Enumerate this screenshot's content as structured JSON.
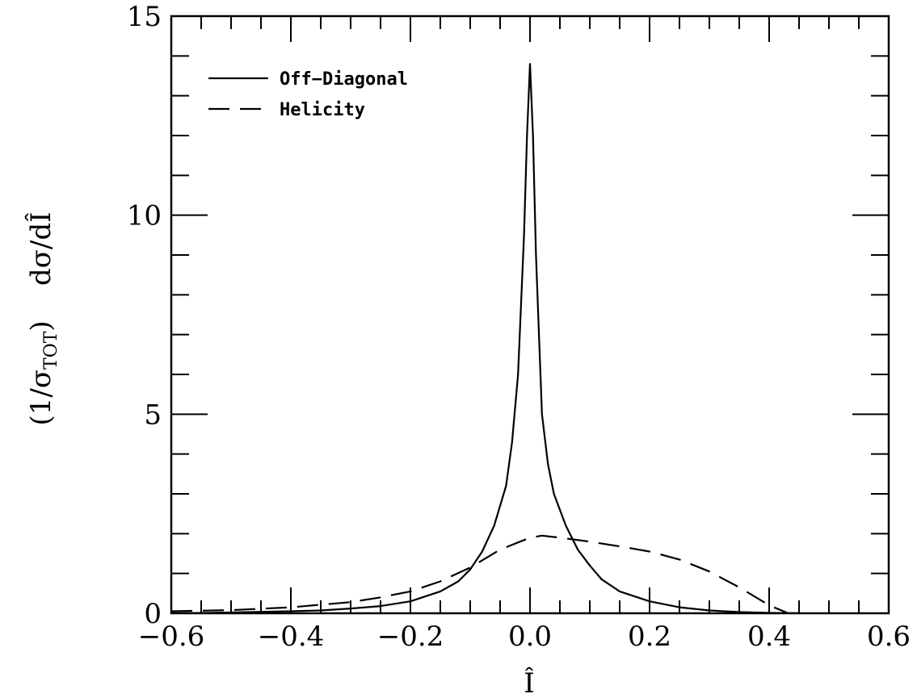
{
  "chart_data": {
    "type": "line",
    "title": "",
    "xlabel": "Î",
    "ylabel": {
      "prefix": "(1/σ",
      "subscript": "TOT",
      "suffix": ")    dσ/dÎ"
    },
    "xlim": [
      -0.6,
      0.6
    ],
    "ylim": [
      0,
      15
    ],
    "x_ticks": [
      -0.6,
      -0.4,
      -0.2,
      0.0,
      0.2,
      0.4,
      0.6
    ],
    "x_tick_labels": [
      "−0.6",
      "−0.4",
      "−0.2",
      "0.0",
      "0.2",
      "0.4",
      "0.6"
    ],
    "y_ticks": [
      0,
      5,
      10,
      15
    ],
    "y_tick_labels": [
      "0",
      "5",
      "10",
      "15"
    ],
    "x_minor_step": 0.05,
    "y_minor_step": 1,
    "grid": false,
    "legend_position": "top-left",
    "series": [
      {
        "name": "Off−Diagonal",
        "style": "solid",
        "x": [
          -0.6,
          -0.5,
          -0.4,
          -0.35,
          -0.3,
          -0.25,
          -0.2,
          -0.15,
          -0.12,
          -0.1,
          -0.08,
          -0.06,
          -0.04,
          -0.03,
          -0.02,
          -0.01,
          -0.005,
          0.0,
          0.005,
          0.01,
          0.02,
          0.03,
          0.04,
          0.06,
          0.08,
          0.1,
          0.12,
          0.15,
          0.2,
          0.25,
          0.3,
          0.35,
          0.4,
          0.45
        ],
        "y": [
          0.0,
          0.02,
          0.05,
          0.07,
          0.12,
          0.18,
          0.3,
          0.55,
          0.8,
          1.1,
          1.55,
          2.2,
          3.2,
          4.3,
          6.0,
          9.5,
          12.0,
          13.8,
          12.0,
          9.0,
          5.0,
          3.75,
          3.0,
          2.2,
          1.6,
          1.2,
          0.85,
          0.55,
          0.3,
          0.15,
          0.07,
          0.03,
          0.01,
          0.0
        ]
      },
      {
        "name": "Helicity",
        "style": "dashed",
        "x": [
          -0.6,
          -0.5,
          -0.4,
          -0.3,
          -0.25,
          -0.2,
          -0.15,
          -0.1,
          -0.05,
          0.0,
          0.02,
          0.05,
          0.1,
          0.15,
          0.2,
          0.25,
          0.3,
          0.35,
          0.4,
          0.44,
          0.48
        ],
        "y": [
          0.05,
          0.08,
          0.15,
          0.28,
          0.4,
          0.55,
          0.8,
          1.15,
          1.6,
          1.9,
          1.95,
          1.9,
          1.8,
          1.68,
          1.55,
          1.35,
          1.05,
          0.65,
          0.2,
          -0.05,
          -0.05
        ]
      }
    ]
  }
}
